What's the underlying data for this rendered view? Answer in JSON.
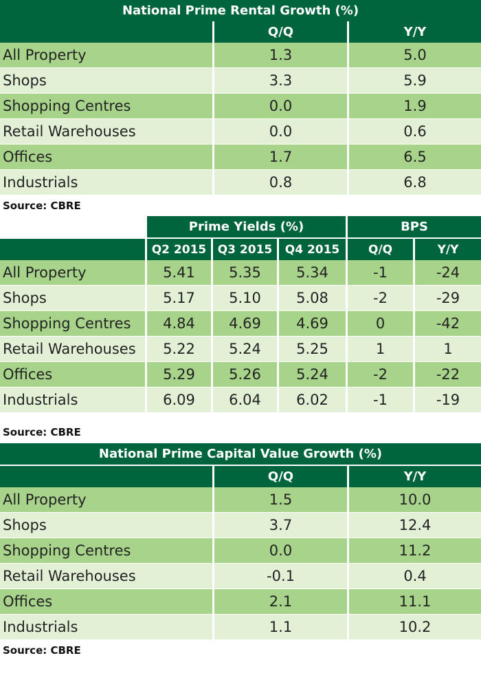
{
  "rental": {
    "title": "National Prime Rental Growth (%)",
    "columns": [
      "Q/Q",
      "Y/Y"
    ],
    "rows": [
      {
        "label": "All Property",
        "qq": "1.3",
        "yy": "5.0"
      },
      {
        "label": "Shops",
        "qq": "3.3",
        "yy": "5.9"
      },
      {
        "label": "Shopping Centres",
        "qq": "0.0",
        "yy": "1.9"
      },
      {
        "label": "Retail Warehouses",
        "qq": "0.0",
        "yy": "0.6"
      },
      {
        "label": "Offices",
        "qq": "1.7",
        "yy": "6.5"
      },
      {
        "label": "Industrials",
        "qq": "0.8",
        "yy": "6.8"
      }
    ],
    "source": "Source: CBRE"
  },
  "yields": {
    "group_yields": "Prime Yields (%)",
    "group_bps": "BPS",
    "columns": [
      "Q2 2015",
      "Q3 2015",
      "Q4 2015",
      "Q/Q",
      "Y/Y"
    ],
    "rows": [
      {
        "label": "All Property",
        "q2": "5.41",
        "q3": "5.35",
        "q4": "5.34",
        "qq": "-1",
        "yy": "-24"
      },
      {
        "label": "Shops",
        "q2": "5.17",
        "q3": "5.10",
        "q4": "5.08",
        "qq": "-2",
        "yy": "-29"
      },
      {
        "label": "Shopping Centres",
        "q2": "4.84",
        "q3": "4.69",
        "q4": "4.69",
        "qq": "0",
        "yy": "-42"
      },
      {
        "label": "Retail Warehouses",
        "q2": "5.22",
        "q3": "5.24",
        "q4": "5.25",
        "qq": "1",
        "yy": "1"
      },
      {
        "label": "Offices",
        "q2": "5.29",
        "q3": "5.26",
        "q4": "5.24",
        "qq": "-2",
        "yy": "-22"
      },
      {
        "label": "Industrials",
        "q2": "6.09",
        "q3": "6.04",
        "q4": "6.02",
        "qq": "-1",
        "yy": "-19"
      }
    ],
    "source": "Source: CBRE"
  },
  "capital": {
    "title": "National Prime Capital Value Growth (%)",
    "columns": [
      "Q/Q",
      "Y/Y"
    ],
    "rows": [
      {
        "label": "All Property",
        "qq": "1.5",
        "yy": "10.0"
      },
      {
        "label": "Shops",
        "qq": "3.7",
        "yy": "12.4"
      },
      {
        "label": "Shopping Centres",
        "qq": "0.0",
        "yy": "11.2"
      },
      {
        "label": "Retail Warehouses",
        "qq": "-0.1",
        "yy": "0.4"
      },
      {
        "label": "Offices",
        "qq": "2.1",
        "yy": "11.1"
      },
      {
        "label": "Industrials",
        "qq": "1.1",
        "yy": "10.2"
      }
    ],
    "source": "Source: CBRE"
  }
}
